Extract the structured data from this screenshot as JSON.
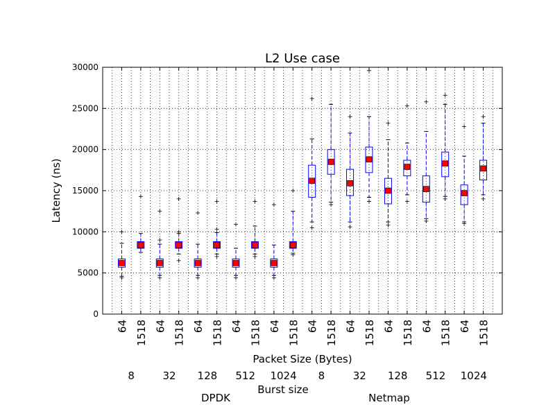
{
  "chart_data": {
    "type": "box",
    "title": "L2 Use case",
    "xlabel": "Packet Size (Bytes)",
    "ylabel": "Latency (ns)",
    "ylim": [
      0,
      30000
    ],
    "yticks": [
      0,
      5000,
      10000,
      15000,
      20000,
      25000,
      30000
    ],
    "grid": true,
    "colors": {
      "box": "#0000ff",
      "mean_marker": "#ff0000",
      "flier": "#000000",
      "grid": "#000000"
    },
    "secondary_axis_label": "Burst size",
    "burst_sizes": [
      "8",
      "32",
      "128",
      "512",
      "1024",
      "8",
      "32",
      "128",
      "512",
      "1024"
    ],
    "group_labels": [
      "DPDK",
      "Netmap"
    ],
    "boxes": [
      {
        "group": "DPDK",
        "burst": "8",
        "packet_size": "64",
        "whislo": 4600,
        "q1": 5700,
        "med": 6200,
        "q3": 6700,
        "whishi": 8600,
        "mean": 6200,
        "fliers": [
          4400,
          10000
        ]
      },
      {
        "group": "DPDK",
        "burst": "8",
        "packet_size": "1518",
        "whislo": 7500,
        "q1": 8000,
        "med": 8400,
        "q3": 8800,
        "whishi": 9800,
        "mean": 8400,
        "fliers": [
          14300
        ]
      },
      {
        "group": "DPDK",
        "burst": "32",
        "packet_size": "64",
        "whislo": 4700,
        "q1": 5700,
        "med": 6200,
        "q3": 6700,
        "whishi": 8500,
        "mean": 6200,
        "fliers": [
          4400,
          9000,
          12500
        ]
      },
      {
        "group": "DPDK",
        "burst": "32",
        "packet_size": "1518",
        "whislo": 7300,
        "q1": 8000,
        "med": 8400,
        "q3": 8800,
        "whishi": 9800,
        "mean": 8400,
        "fliers": [
          6500,
          10000,
          14000
        ]
      },
      {
        "group": "DPDK",
        "burst": "128",
        "packet_size": "64",
        "whislo": 4700,
        "q1": 5700,
        "med": 6200,
        "q3": 6700,
        "whishi": 8500,
        "mean": 6200,
        "fliers": [
          4400,
          12300
        ]
      },
      {
        "group": "DPDK",
        "burst": "128",
        "packet_size": "1518",
        "whislo": 7300,
        "q1": 8000,
        "med": 8400,
        "q3": 8800,
        "whishi": 9900,
        "mean": 8400,
        "fliers": [
          7000,
          10300,
          13700
        ]
      },
      {
        "group": "DPDK",
        "burst": "512",
        "packet_size": "64",
        "whislo": 4700,
        "q1": 5700,
        "med": 6200,
        "q3": 6700,
        "whishi": 8000,
        "mean": 6200,
        "fliers": [
          4400,
          10900
        ]
      },
      {
        "group": "DPDK",
        "burst": "512",
        "packet_size": "1518",
        "whislo": 7300,
        "q1": 8000,
        "med": 8400,
        "q3": 8800,
        "whishi": 10700,
        "mean": 8400,
        "fliers": [
          7000,
          13700
        ]
      },
      {
        "group": "DPDK",
        "burst": "1024",
        "packet_size": "64",
        "whislo": 4700,
        "q1": 5700,
        "med": 6200,
        "q3": 6700,
        "whishi": 8400,
        "mean": 6200,
        "fliers": [
          4400,
          13300
        ]
      },
      {
        "group": "DPDK",
        "burst": "1024",
        "packet_size": "1518",
        "whislo": 7400,
        "q1": 8000,
        "med": 8400,
        "q3": 8800,
        "whishi": 12500,
        "mean": 8400,
        "fliers": [
          7200,
          15000
        ]
      },
      {
        "group": "Netmap",
        "burst": "8",
        "packet_size": "64",
        "whislo": 11200,
        "q1": 14200,
        "med": 16200,
        "q3": 18100,
        "whishi": 21300,
        "mean": 16200,
        "fliers": [
          10500,
          26200
        ]
      },
      {
        "group": "Netmap",
        "burst": "8",
        "packet_size": "1518",
        "whislo": 13600,
        "q1": 17000,
        "med": 18500,
        "q3": 20000,
        "whishi": 25500,
        "mean": 18500,
        "fliers": [
          13300
        ]
      },
      {
        "group": "Netmap",
        "burst": "32",
        "packet_size": "64",
        "whislo": 11200,
        "q1": 14400,
        "med": 15900,
        "q3": 17600,
        "whishi": 22000,
        "mean": 15900,
        "fliers": [
          10600,
          24000
        ]
      },
      {
        "group": "Netmap",
        "burst": "32",
        "packet_size": "1518",
        "whislo": 14200,
        "q1": 17200,
        "med": 18800,
        "q3": 20300,
        "whishi": 24000,
        "mean": 18800,
        "fliers": [
          13700,
          29600
        ]
      },
      {
        "group": "Netmap",
        "burst": "128",
        "packet_size": "64",
        "whislo": 11200,
        "q1": 13400,
        "med": 15000,
        "q3": 16500,
        "whishi": 21200,
        "mean": 15000,
        "fliers": [
          10800,
          23200
        ]
      },
      {
        "group": "Netmap",
        "burst": "128",
        "packet_size": "1518",
        "whislo": 14500,
        "q1": 16800,
        "med": 17900,
        "q3": 18700,
        "whishi": 20800,
        "mean": 17900,
        "fliers": [
          13700,
          25300
        ]
      },
      {
        "group": "Netmap",
        "burst": "512",
        "packet_size": "64",
        "whislo": 11600,
        "q1": 13600,
        "med": 15200,
        "q3": 16800,
        "whishi": 22200,
        "mean": 15200,
        "fliers": [
          11300,
          25800
        ]
      },
      {
        "group": "Netmap",
        "burst": "512",
        "packet_size": "1518",
        "whislo": 14300,
        "q1": 16700,
        "med": 18300,
        "q3": 19700,
        "whishi": 25500,
        "mean": 18300,
        "fliers": [
          14000,
          26600
        ]
      },
      {
        "group": "Netmap",
        "burst": "1024",
        "packet_size": "64",
        "whislo": 11200,
        "q1": 13300,
        "med": 14700,
        "q3": 15700,
        "whishi": 19200,
        "mean": 14700,
        "fliers": [
          11000,
          22800
        ]
      },
      {
        "group": "Netmap",
        "burst": "1024",
        "packet_size": "1518",
        "whislo": 14500,
        "q1": 16300,
        "med": 17700,
        "q3": 18700,
        "whishi": 23200,
        "mean": 17700,
        "fliers": [
          14000,
          24000
        ]
      }
    ]
  }
}
